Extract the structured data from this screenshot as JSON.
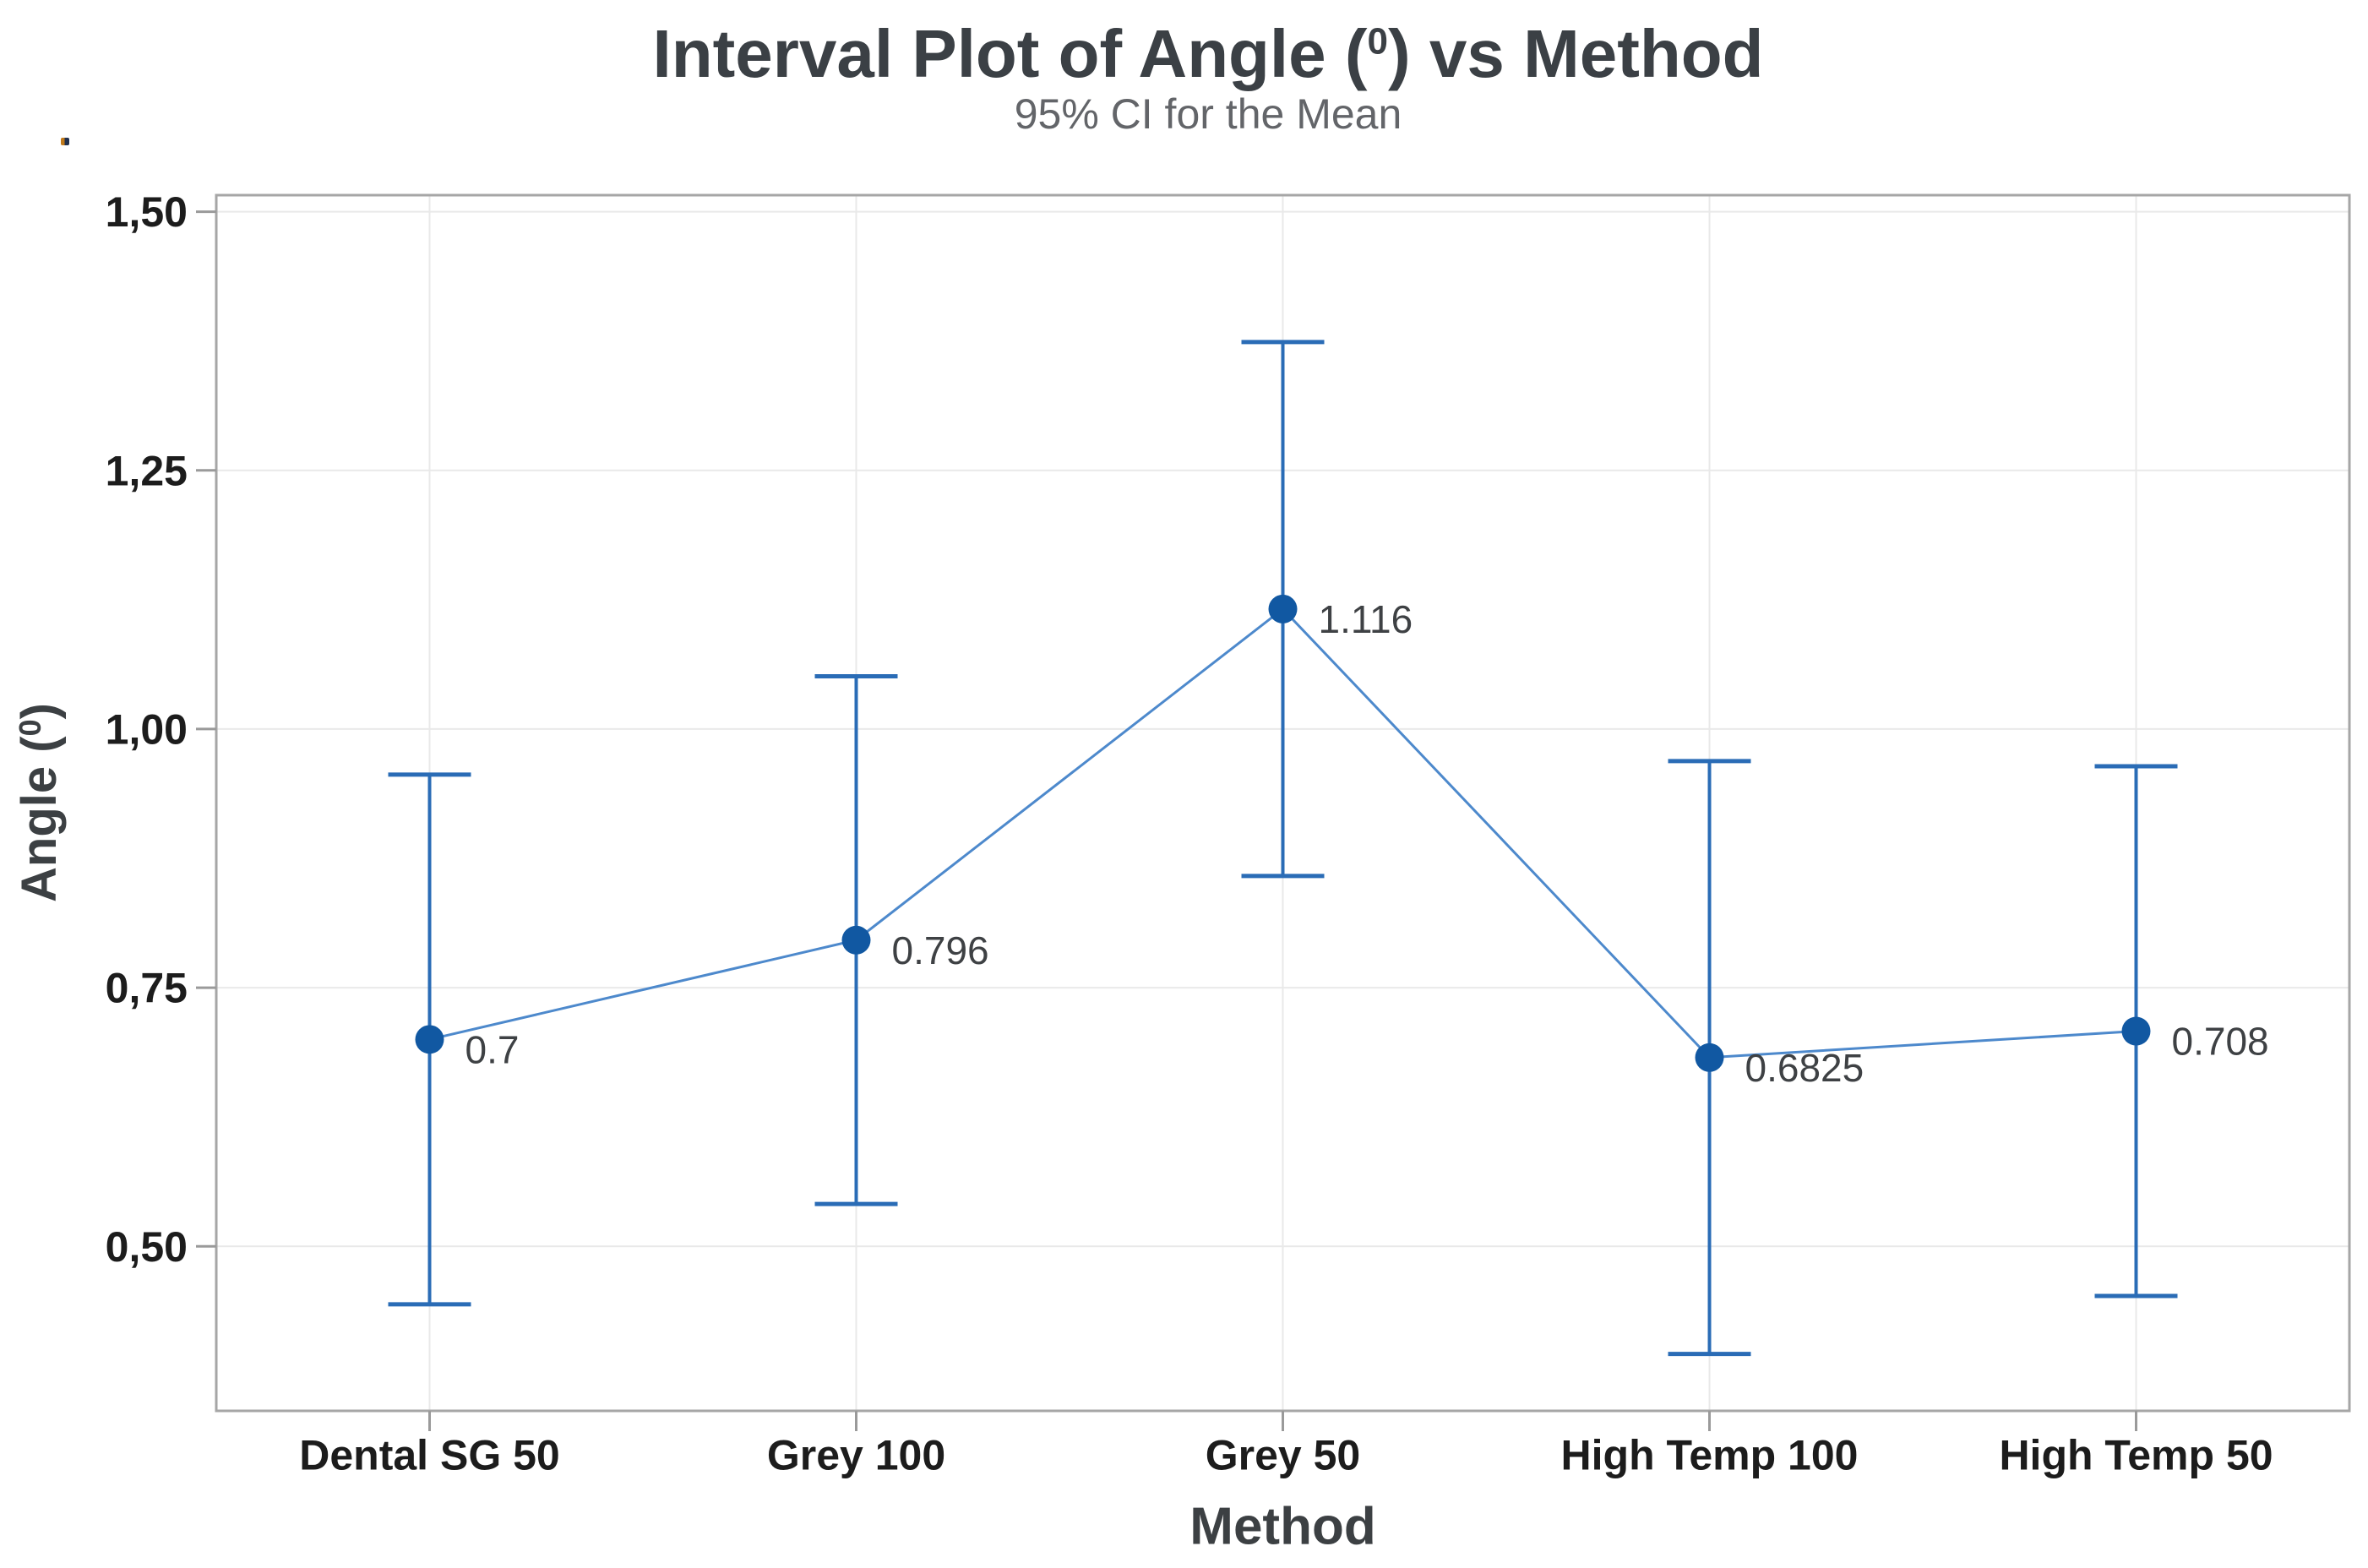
{
  "header": {
    "title_prefix": "Interval Plot of Angle (",
    "title_sup": "0",
    "title_suffix": ") vs Method",
    "subtitle": "95% CI for the Mean"
  },
  "chart_data": {
    "type": "line",
    "variant": "interval-plot-with-95ci-error-bars",
    "title": "Interval Plot of Angle (0) vs Method",
    "subtitle": "95% CI for the Mean",
    "xlabel": "Method",
    "ylabel": "Angle (0)",
    "ylabel_parts": {
      "prefix": "Angle (",
      "sup": "0",
      "suffix": ")"
    },
    "categories": [
      "Dental SG 50",
      "Grey 100",
      "Grey 50",
      "High Temp 100",
      "High Temp 50"
    ],
    "points": [
      {
        "category": "Dental SG 50",
        "mean": 0.7,
        "ci_lower": 0.444,
        "ci_upper": 0.956,
        "label": "0.7"
      },
      {
        "category": "Grey 100",
        "mean": 0.796,
        "ci_lower": 0.541,
        "ci_upper": 1.051,
        "label": "0.796"
      },
      {
        "category": "Grey 50",
        "mean": 1.116,
        "ci_lower": 0.858,
        "ci_upper": 1.374,
        "label": "1.116"
      },
      {
        "category": "High Temp 100",
        "mean": 0.6825,
        "ci_lower": 0.396,
        "ci_upper": 0.969,
        "label": "0.6825"
      },
      {
        "category": "High Temp 50",
        "mean": 0.708,
        "ci_lower": 0.452,
        "ci_upper": 0.964,
        "label": "0.708"
      }
    ],
    "yticks": {
      "values": [
        1.5,
        1.25,
        1.0,
        0.75,
        0.5
      ],
      "labels": [
        "1,50",
        "1,25",
        "1,00",
        "0,75",
        "0,50"
      ]
    },
    "ylim": [
      0.341,
      1.516
    ],
    "grid": {
      "horizontal": true,
      "vertical": true
    },
    "legend": false,
    "colors": {
      "marker": "#1158a2",
      "error_bar": "#2a6cb6",
      "connector": "#4d89cc",
      "grid": "#e9e9e9",
      "axis_border": "#a6a6a6",
      "tick": "#9a9a9a",
      "tick_label": "#1c1c1c",
      "axis_title": "#3c4043",
      "title": "#3b4045",
      "subtitle": "#636569",
      "data_label": "#3e4144"
    }
  }
}
